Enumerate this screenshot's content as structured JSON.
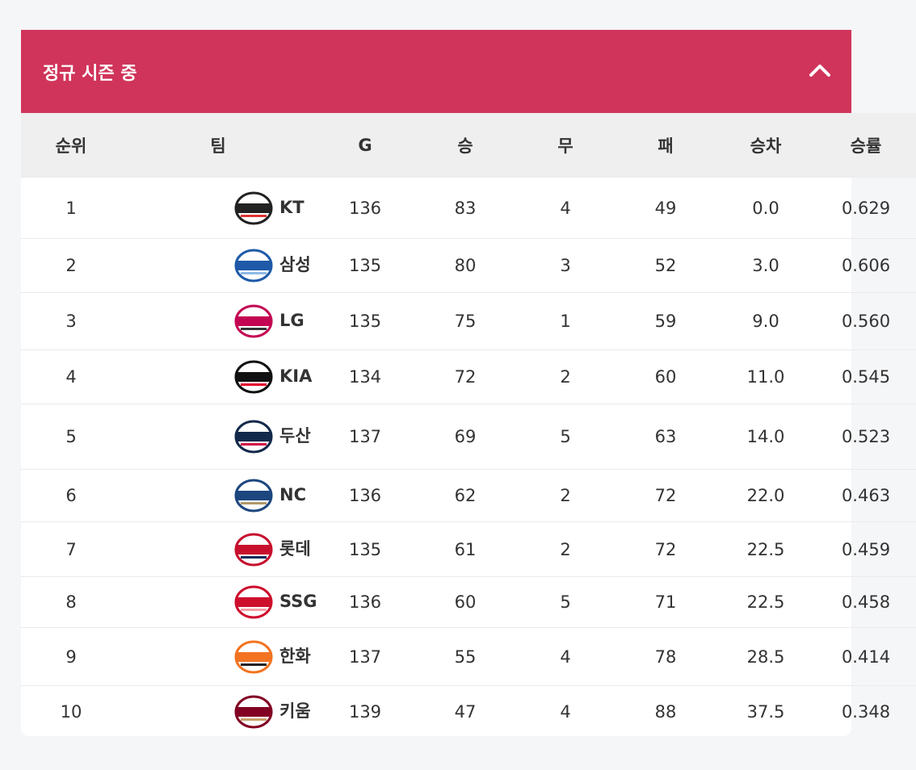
{
  "header": {
    "title": "정규 시즌 중"
  },
  "table": {
    "columns": [
      "순위",
      "팀",
      "G",
      "승",
      "무",
      "패",
      "승차",
      "승률"
    ],
    "rows": [
      [
        "1",
        "KT",
        "136",
        "83",
        "4",
        "49",
        "0.0",
        "0.629"
      ],
      [
        "2",
        "삼성",
        "135",
        "80",
        "3",
        "52",
        "3.0",
        "0.606"
      ],
      [
        "3",
        "LG",
        "135",
        "75",
        "1",
        "59",
        "9.0",
        "0.560"
      ],
      [
        "4",
        "KIA",
        "134",
        "72",
        "2",
        "60",
        "11.0",
        "0.545"
      ],
      [
        "5",
        "두산",
        "137",
        "69",
        "5",
        "63",
        "14.0",
        "0.523"
      ],
      [
        "6",
        "NC",
        "136",
        "62",
        "2",
        "72",
        "22.0",
        "0.463"
      ],
      [
        "7",
        "롯데",
        "135",
        "61",
        "2",
        "72",
        "22.5",
        "0.459"
      ],
      [
        "8",
        "SSG",
        "136",
        "60",
        "5",
        "71",
        "22.5",
        "0.458"
      ],
      [
        "9",
        "한화",
        "137",
        "55",
        "4",
        "78",
        "28.5",
        "0.414"
      ],
      [
        "10",
        "키움",
        "139",
        "47",
        "4",
        "88",
        "37.5",
        "0.348"
      ]
    ]
  }
}
